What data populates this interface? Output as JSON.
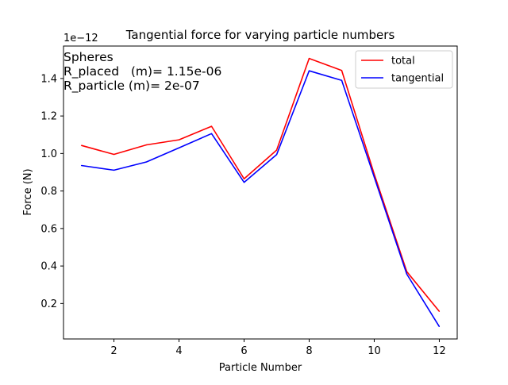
{
  "chart_data": {
    "type": "line",
    "title": "Tangential force for varying particle numbers",
    "xlabel": "Particle Number",
    "ylabel": "Force (N)",
    "y_offset_label": "1e−12",
    "y_scale_note": "values in units of 1e-12 N",
    "xlim": [
      0.45,
      12.55
    ],
    "ylim": [
      0.011,
      1.573
    ],
    "xticks": [
      2,
      4,
      6,
      8,
      10,
      12
    ],
    "xtick_labels": [
      "2",
      "4",
      "6",
      "8",
      "10",
      "12"
    ],
    "yticks": [
      0.2,
      0.4,
      0.6,
      0.8,
      1.0,
      1.2,
      1.4
    ],
    "ytick_labels": [
      "0.2",
      "0.4",
      "0.6",
      "0.8",
      "1.0",
      "1.2",
      "1.4"
    ],
    "grid": false,
    "legend_position": "top-right",
    "x": [
      1,
      2,
      3,
      4,
      5,
      6,
      7,
      8,
      9,
      10,
      11,
      12
    ],
    "series": [
      {
        "name": "total",
        "color": "#ff0000",
        "values": [
          1.043,
          0.995,
          1.046,
          1.073,
          1.145,
          0.865,
          1.018,
          1.507,
          1.443,
          0.89,
          0.37,
          0.158
        ]
      },
      {
        "name": "tangential",
        "color": "#0000ff",
        "values": [
          0.936,
          0.911,
          0.955,
          1.03,
          1.106,
          0.846,
          0.994,
          1.441,
          1.39,
          0.874,
          0.357,
          0.077
        ]
      }
    ],
    "annotations": [
      "Spheres",
      "R_placed   (m)= 1.15e-06",
      "R_particle (m)= 2e-07"
    ]
  }
}
